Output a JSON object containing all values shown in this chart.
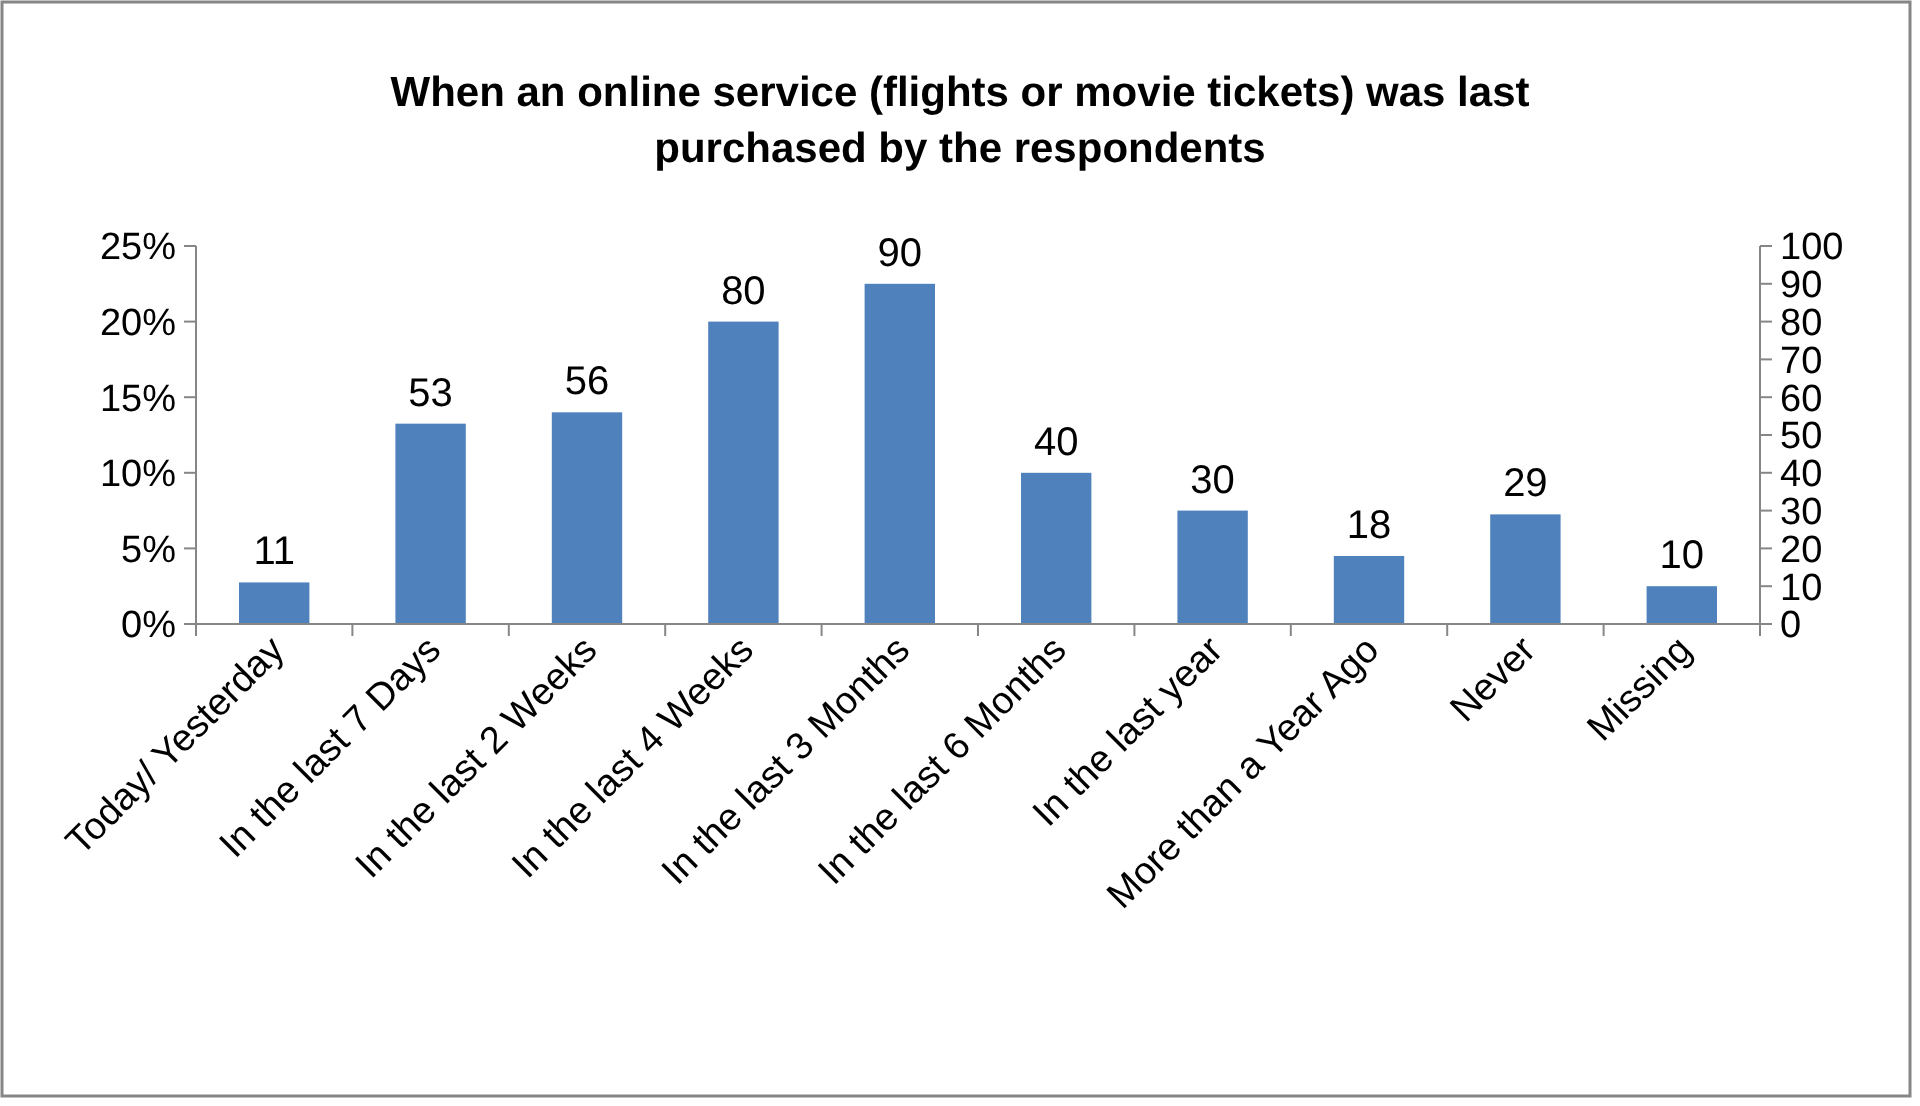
{
  "chart_data": {
    "type": "bar",
    "title": "When an online service (flights or movie tickets) was last purchased by the respondents",
    "categories": [
      "Today/ Yesterday",
      "In the last 7 Days",
      "In the last 2 Weeks",
      "In the last 4 Weeks",
      "In the last 3 Months",
      "In the last 6 Months",
      "In the last year",
      "More than a Year Ago",
      "Never",
      "Missing"
    ],
    "series": [
      {
        "color": "#4f81bd",
        "axis": "y2",
        "values": [
          11,
          53,
          56,
          80,
          90,
          40,
          30,
          18,
          29,
          10
        ]
      }
    ],
    "ylim": [
      0,
      25
    ],
    "yticks": [
      {
        "value": 0,
        "label": "0%"
      },
      {
        "value": 5,
        "label": "5%"
      },
      {
        "value": 10,
        "label": "10%"
      },
      {
        "value": 15,
        "label": "15%"
      },
      {
        "value": 20,
        "label": "20%"
      },
      {
        "value": 25,
        "label": "25%"
      }
    ],
    "y2lim": [
      0,
      100
    ],
    "y2ticks": [
      0,
      10,
      20,
      30,
      40,
      50,
      60,
      70,
      80,
      90,
      100
    ],
    "data_labels": true,
    "grid": false
  }
}
